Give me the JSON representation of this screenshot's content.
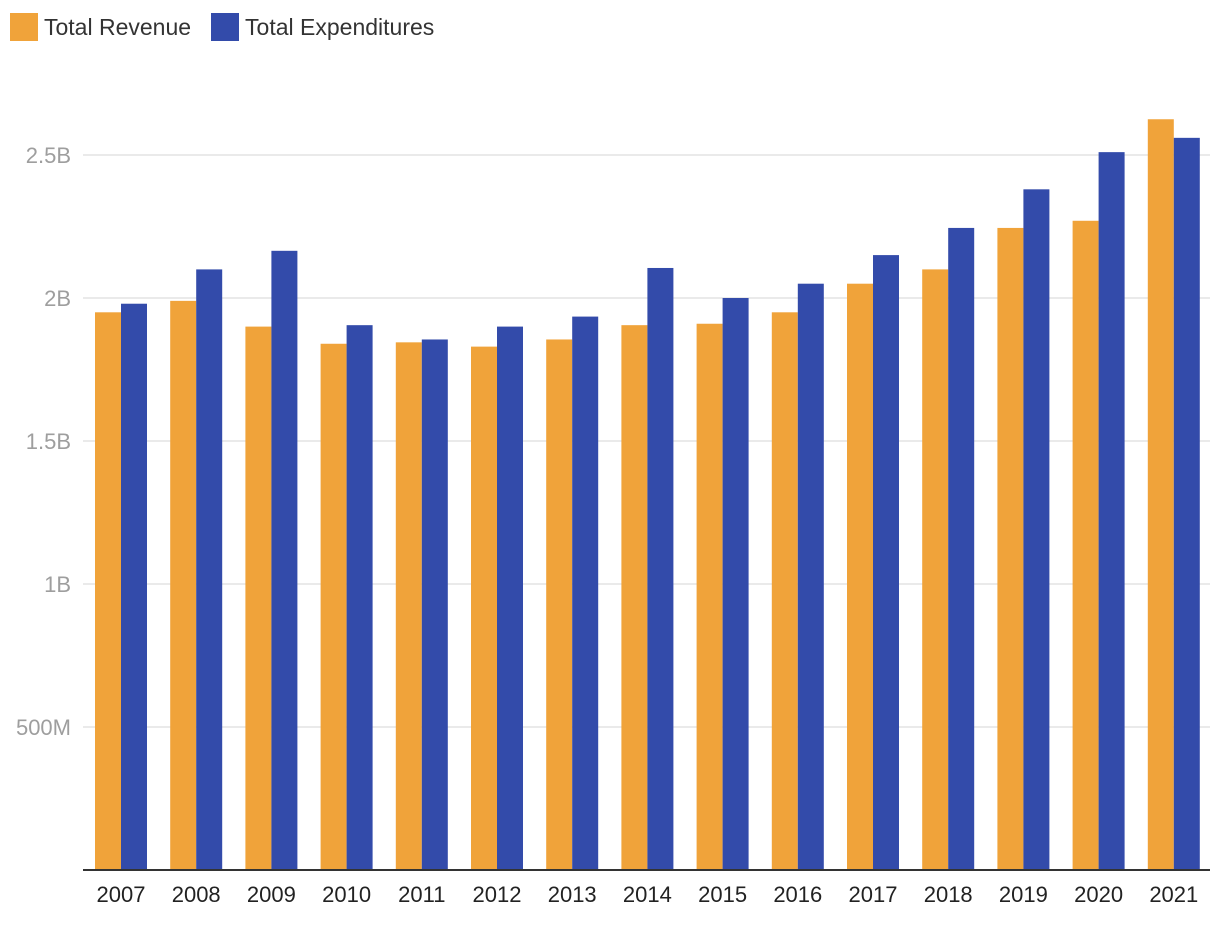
{
  "colors": {
    "revenue": "#F0A33A",
    "expenditures": "#334BAA",
    "grid": "#e3e3e3",
    "axis": "#333333"
  },
  "legend": [
    {
      "label": "Total Revenue",
      "color": "#F0A33A"
    },
    {
      "label": "Total Expenditures",
      "color": "#334BAA"
    }
  ],
  "chart_data": {
    "type": "bar",
    "title": "",
    "xlabel": "",
    "ylabel": "",
    "categories": [
      "2007",
      "2008",
      "2009",
      "2010",
      "2011",
      "2012",
      "2013",
      "2014",
      "2015",
      "2016",
      "2017",
      "2018",
      "2019",
      "2020",
      "2021"
    ],
    "series": [
      {
        "name": "Total Revenue",
        "color": "#F0A33A",
        "values": [
          1950000000.0,
          1990000000.0,
          1900000000.0,
          1840000000.0,
          1845000000.0,
          1830000000.0,
          1855000000.0,
          1905000000.0,
          1910000000.0,
          1950000000.0,
          2050000000.0,
          2100000000.0,
          2245000000.0,
          2270000000.0,
          2625000000.0
        ]
      },
      {
        "name": "Total Expenditures",
        "color": "#334BAA",
        "values": [
          1980000000.0,
          2100000000.0,
          2165000000.0,
          1905000000.0,
          1855000000.0,
          1900000000.0,
          1935000000.0,
          2105000000.0,
          2000000000.0,
          2050000000.0,
          2150000000.0,
          2245000000.0,
          2380000000.0,
          2510000000.0,
          2560000000.0
        ]
      }
    ],
    "yticks": [
      {
        "value": 500000000,
        "label": "500M"
      },
      {
        "value": 1000000000,
        "label": "1B"
      },
      {
        "value": 1500000000,
        "label": "1.5B"
      },
      {
        "value": 2000000000,
        "label": "2B"
      },
      {
        "value": 2500000000,
        "label": "2.5B"
      }
    ],
    "ylim": [
      0,
      2800000000
    ],
    "grid": true,
    "legend_position": "top-left"
  }
}
